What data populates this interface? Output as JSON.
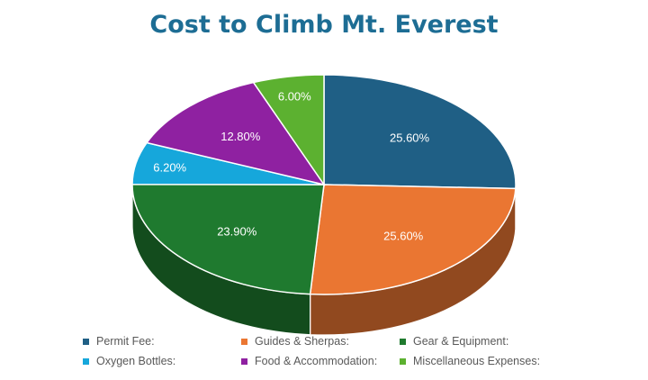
{
  "chart_data": {
    "type": "pie",
    "title": "Cost to Climb Mt. Everest",
    "slices": [
      {
        "label": "Permit Fee:",
        "value": 25.6,
        "display": "25.60%",
        "color": "#1f5f85"
      },
      {
        "label": "Guides & Sherpas:",
        "value": 25.6,
        "display": "25.60%",
        "color": "#ea7632"
      },
      {
        "label": "Gear & Equipment:",
        "value": 23.9,
        "display": "23.90%",
        "color": "#1f7a2f"
      },
      {
        "label": "Oxygen Bottles:",
        "value": 6.2,
        "display": "6.20%",
        "color": "#16a7db"
      },
      {
        "label": "Food & Accommodation:",
        "value": 12.8,
        "display": "12.80%",
        "color": "#8f21a1"
      },
      {
        "label": "Miscellaneous Expenses:",
        "value": 6.0,
        "display": "6.00%",
        "color": "#5cb130"
      }
    ],
    "style": "3d-pie",
    "legend_position": "bottom"
  }
}
